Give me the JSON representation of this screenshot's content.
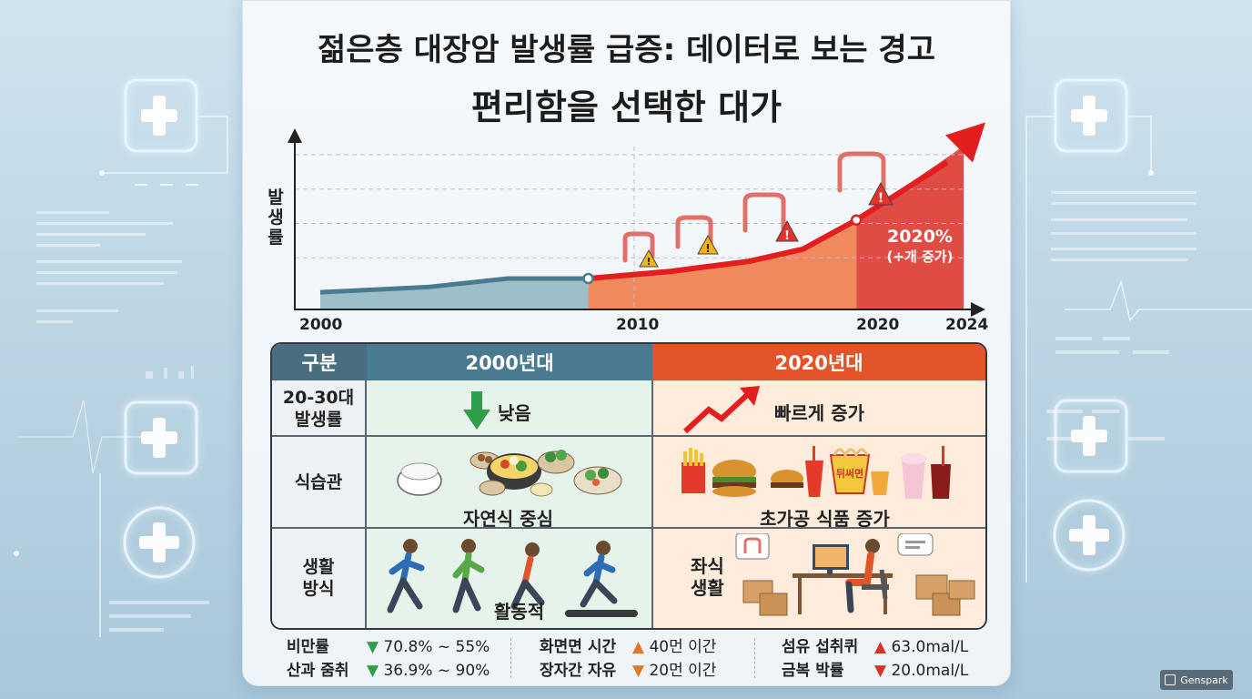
{
  "title_line1": "젊은층 대장암 발생률 급증: 데이터로 보는 경고",
  "title_line2": "편리함을 선택한 대가",
  "chart_data": {
    "type": "area",
    "ylabel": "발생률",
    "x_ticks": [
      "2000",
      "2010",
      "2020",
      "2024"
    ],
    "annotation_main": "2020%",
    "annotation_sub": "(+개 증가)",
    "points": [
      {
        "x": 2000,
        "y": 1.0
      },
      {
        "x": 2004,
        "y": 1.3
      },
      {
        "x": 2007,
        "y": 1.8
      },
      {
        "x": 2010,
        "y": 1.8
      },
      {
        "x": 2013,
        "y": 2.2
      },
      {
        "x": 2016,
        "y": 2.8
      },
      {
        "x": 2018,
        "y": 3.5
      },
      {
        "x": 2020,
        "y": 5.2
      },
      {
        "x": 2024,
        "y": 9.5
      }
    ],
    "colors": {
      "early": "#9dbfca",
      "mid": "#f08a5d",
      "late": "#e04b43",
      "trend": "#e31e1e"
    }
  },
  "table": {
    "headers": {
      "category": "구분",
      "col_2000": "2000년대",
      "col_2020": "2020년대"
    },
    "rows": [
      {
        "label": "20-30대\n발생률",
        "left": "낮음",
        "right": "빠르게 증가"
      },
      {
        "label": "식습관",
        "left": "자연식 중심",
        "right": "초가공 식품 증가"
      },
      {
        "label": "생활\n방식",
        "left": "활동적",
        "right": "좌식\n생활"
      }
    ],
    "colors": {
      "header_left": "#4a7a8f",
      "header_right": "#e4542a",
      "header_cat": "#4b6d80"
    }
  },
  "stats": {
    "group1": [
      {
        "label": "비만률",
        "value": "70.8% ~ 55%"
      },
      {
        "label": "산과 줌취",
        "value": "36.9% ~ 90%"
      }
    ],
    "group2": [
      {
        "label": "화면면 시간",
        "value": "40먼 이간"
      },
      {
        "label": "장자간 자유",
        "value": "20먼 이간"
      }
    ],
    "group3": [
      {
        "label": "섬유 섭취퀴",
        "value": "63.0mal/L"
      },
      {
        "label": "금복 박률",
        "value": "20.0mal/L"
      }
    ]
  },
  "icons": {
    "bowl_label": "뒤써면"
  },
  "brand": "Genspark"
}
